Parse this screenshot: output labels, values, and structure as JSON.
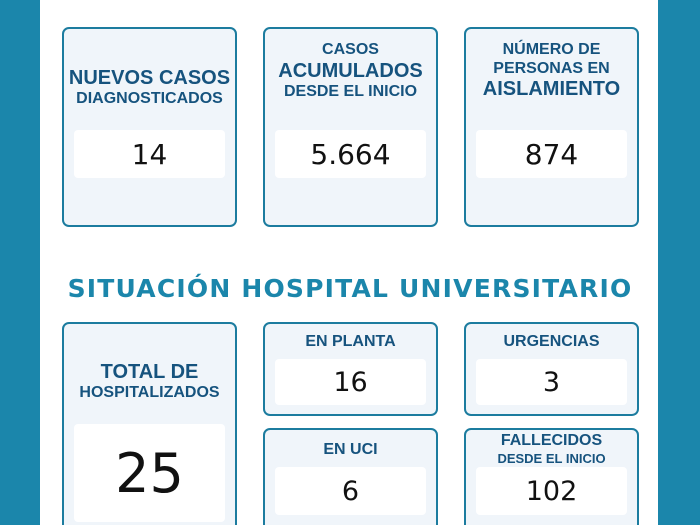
{
  "stats": {
    "nuevos": {
      "line1": "NUEVOS CASOS",
      "line2": "DIAGNOSTICADOS",
      "value": "14"
    },
    "acumulados": {
      "line1": "CASOS",
      "line2": "ACUMULADOS",
      "line3": "DESDE EL INICIO",
      "value": "5.664"
    },
    "aislamiento": {
      "line1": "NÚMERO DE",
      "line2": "PERSONAS EN",
      "line3": "AISLAMIENTO",
      "value": "874"
    }
  },
  "hospital": {
    "title": "SITUACIÓN HOSPITAL UNIVERSITARIO",
    "total": {
      "line1": "TOTAL DE",
      "line2": "HOSPITALIZADOS",
      "value": "25"
    },
    "planta": {
      "label": "EN PLANTA",
      "value": "16"
    },
    "urgencias": {
      "label": "URGENCIAS",
      "value": "3"
    },
    "uci": {
      "label": "EN UCI",
      "value": "6"
    },
    "fallecidos": {
      "label": "FALLECIDOS",
      "sublabel": "DESDE EL INICIO",
      "value": "102"
    }
  },
  "colors": {
    "background": "#1b86ab",
    "card_border": "#1c7c9f",
    "label_text": "#16537e",
    "title_text": "#1b86ab"
  }
}
